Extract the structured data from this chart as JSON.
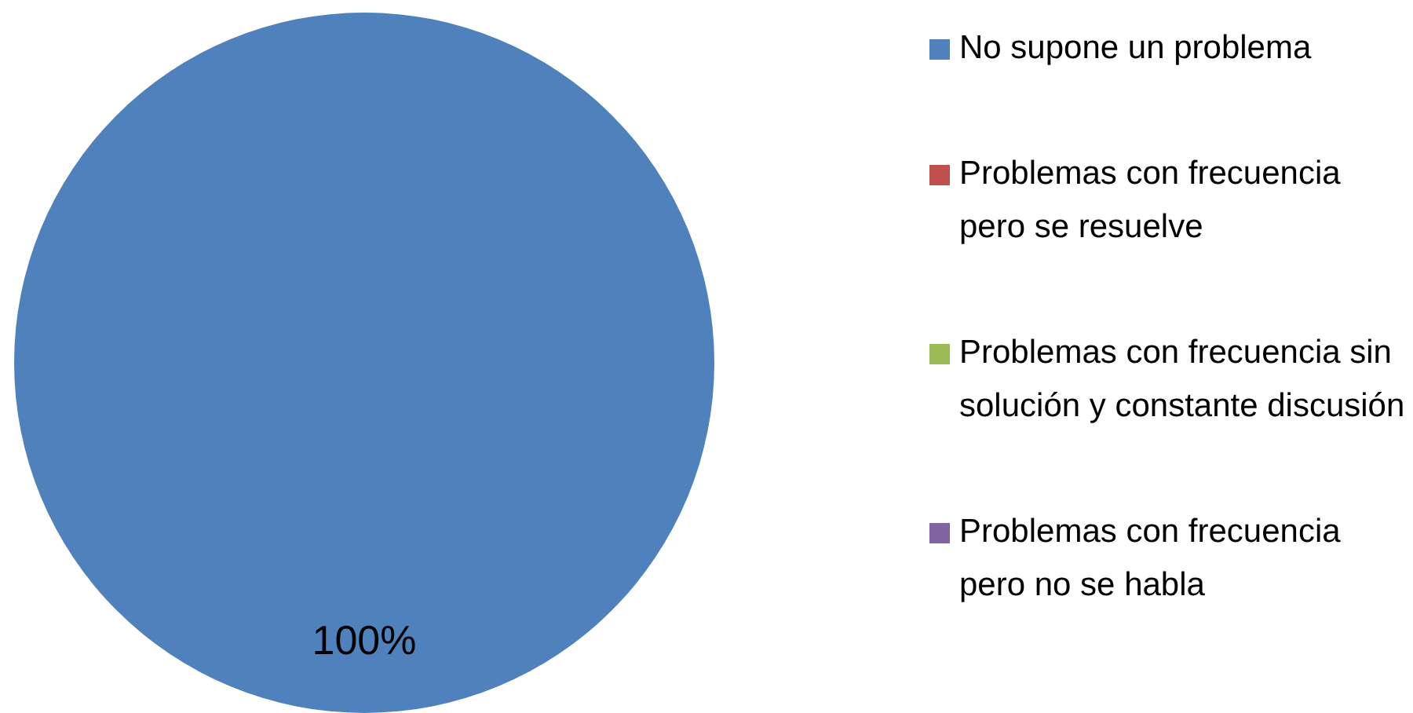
{
  "chart_data": {
    "type": "pie",
    "categories": [
      "No supone un problema",
      "Problemas con frecuencia pero se resuelve",
      "Problemas con frecuencia sin solución y constante discusión",
      "Problemas con frecuencia pero no se habla"
    ],
    "values": [
      100,
      0,
      0,
      0
    ],
    "colors": [
      "#4f81bd",
      "#c0504d",
      "#9bbb59",
      "#8064a2"
    ],
    "value_labels": [
      "100%",
      null,
      null,
      null
    ],
    "legend": "right"
  }
}
